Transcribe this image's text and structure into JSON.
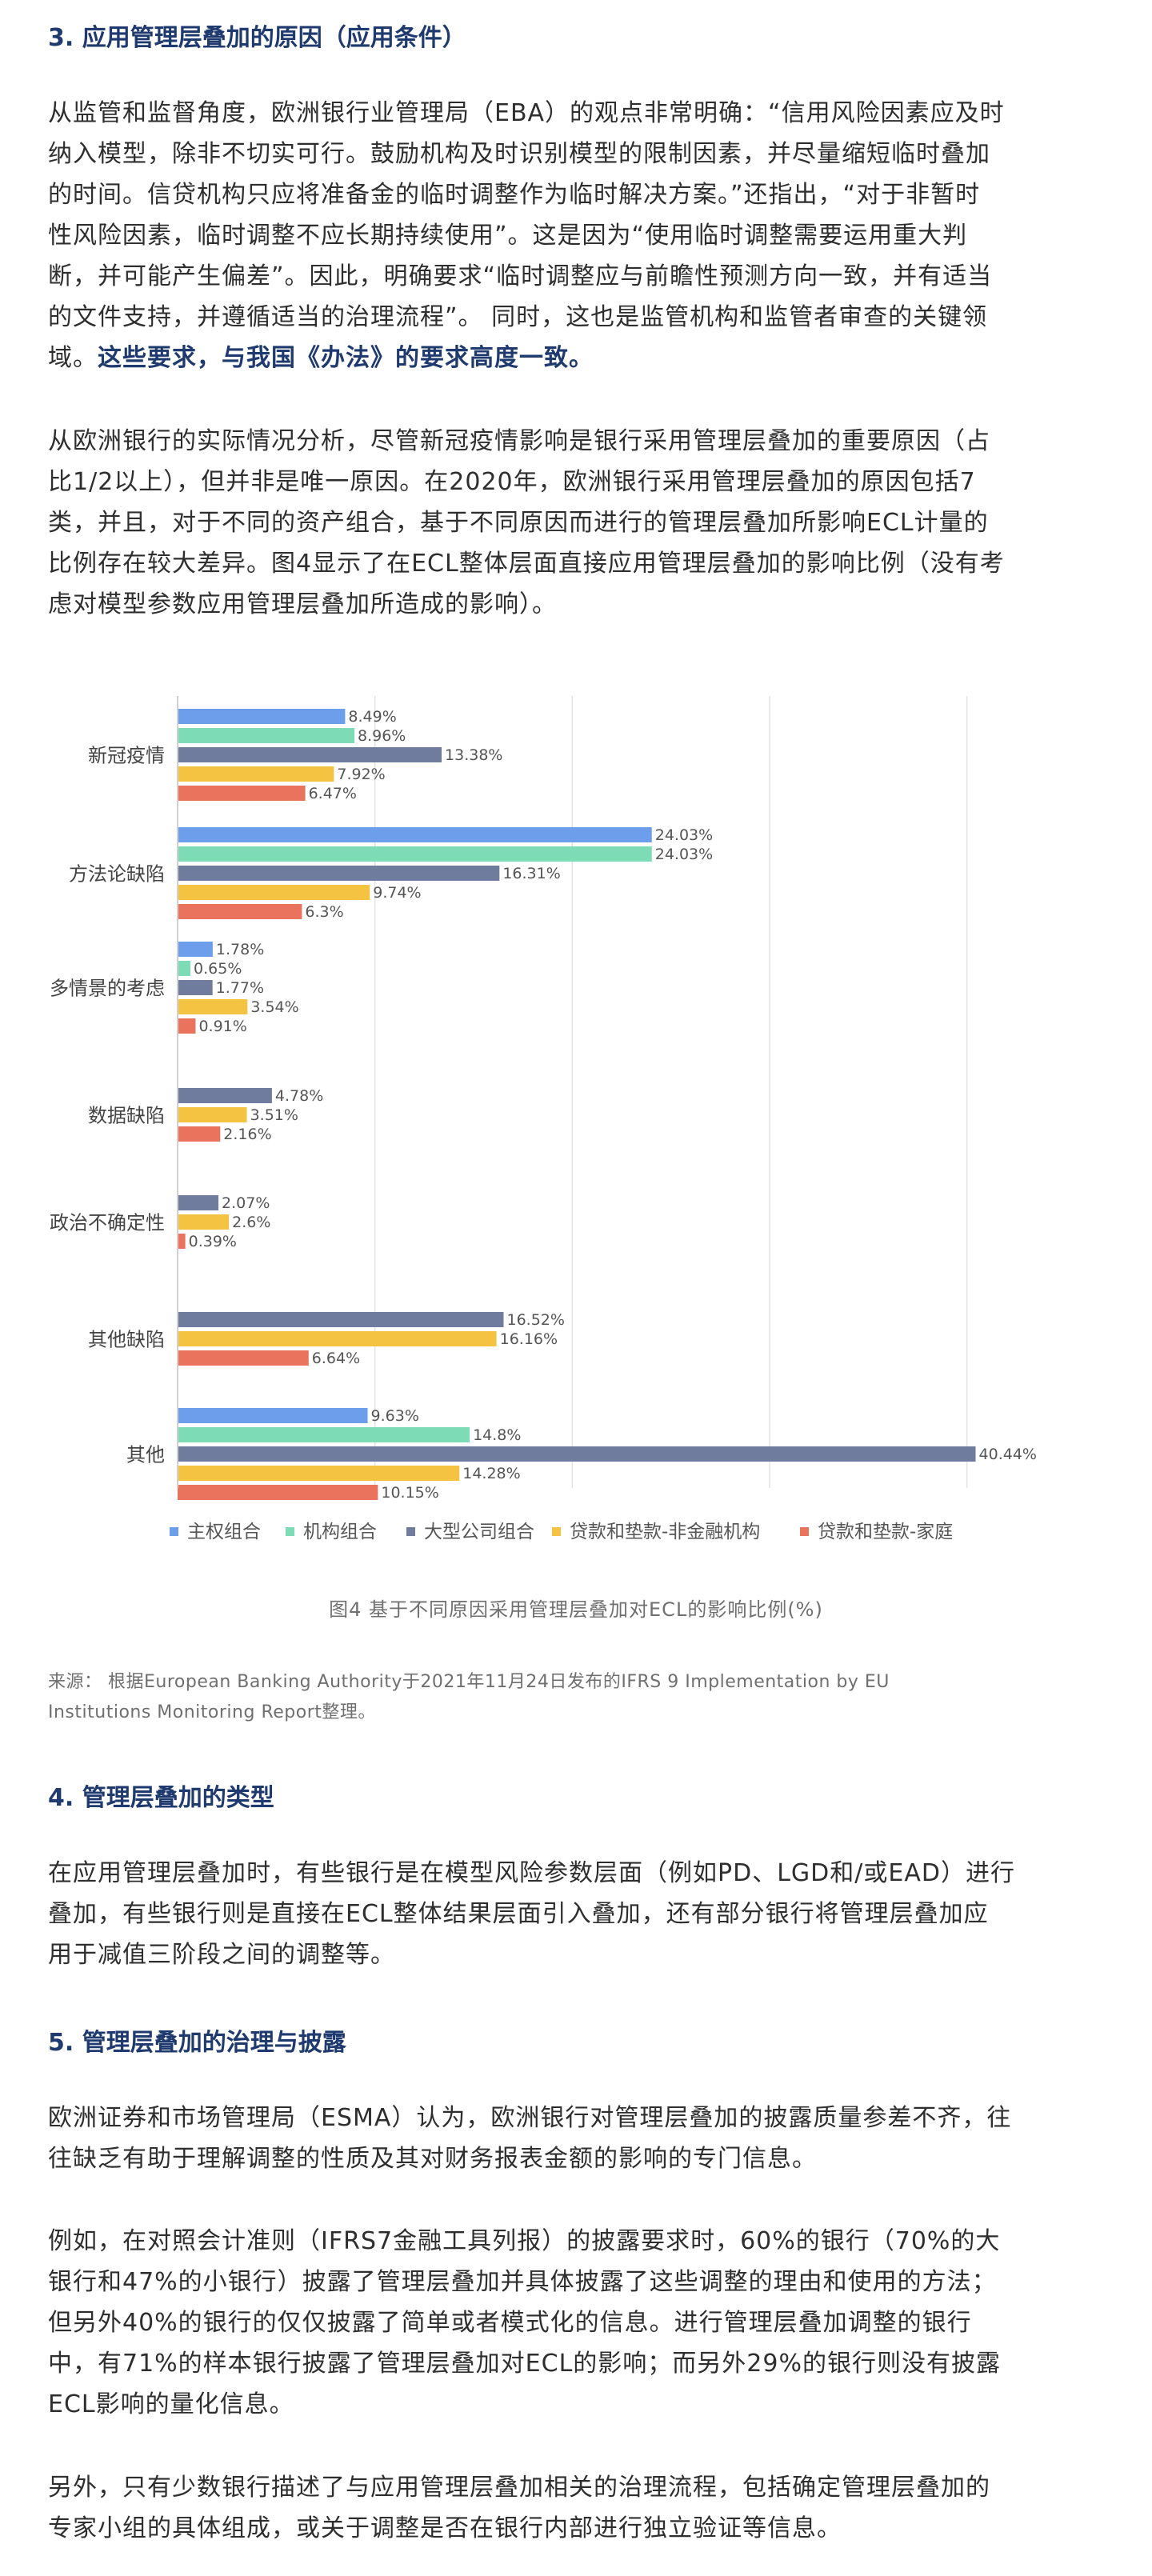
{
  "section3": {
    "heading": "3. 应用管理层叠加的原因（应用条件）",
    "p1_lines": [
      "从监管和监督角度，欧洲银行业管理局（EBA）的观点非常明确：“信用风险因素应及时",
      "纳入模型，除非不切实可行。鼓励机构及时识别模型的限制因素，并尽量缩短临时叠加",
      "的时间。信贷机构只应将准备金的临时调整作为临时解决方案。”还指出，“对于非暂时",
      "性风险因素，临时调整不应长期持续使用”。这是因为“使用临时调整需要运用重大判",
      "断，并可能产生偏差”。因此，明确要求“临时调整应与前瞻性预测方向一致，并有适当",
      "的文件支持，并遵循适当的治理流程”。 同时，这也是监管机构和监管者审查的关键领"
    ],
    "p1_last_plain": "域。",
    "p1_highlight": "这些要求，与我国《办法》的要求高度一致。",
    "p2_lines": [
      "从欧洲银行的实际情况分析，尽管新冠疫情影响是银行采用管理层叠加的重要原因（占",
      "比1/2以上），但并非是唯一原因。在2020年，欧洲银行采用管理层叠加的原因包括7",
      "类，并且，对于不同的资产组合，基于不同原因而进行的管理层叠加所影响ECL计量的",
      "比例存在较大差异。图4显示了在ECL整体层面直接应用管理层叠加的影响比例（没有考",
      "虑对模型参数应用管理层叠加所造成的影响）。"
    ]
  },
  "chart_data": {
    "type": "bar",
    "orientation": "horizontal",
    "categories": [
      "新冠疫情",
      "方法论缺陷",
      "多情景的考虑",
      "数据缺陷",
      "政治不确定性",
      "其他缺陷",
      "其他"
    ],
    "series": [
      {
        "name": "主权组合",
        "color": "#6d9eeb",
        "values": [
          8.49,
          24.03,
          1.78,
          null,
          null,
          null,
          9.63
        ],
        "labels": [
          "8.49%",
          "24.03%",
          "1.78%",
          "",
          "",
          "",
          "9.63%"
        ]
      },
      {
        "name": "机构组合",
        "color": "#7ddbb5",
        "values": [
          8.96,
          24.03,
          0.65,
          null,
          null,
          null,
          14.8
        ],
        "labels": [
          "8.96%",
          "24.03%",
          "0.65%",
          "",
          "",
          "",
          "14.8%"
        ]
      },
      {
        "name": "大型公司组合",
        "color": "#6f7c9e",
        "values": [
          13.38,
          16.31,
          1.77,
          4.78,
          2.07,
          16.52,
          40.44
        ],
        "labels": [
          "13.38%",
          "16.31%",
          "1.77%",
          "4.78%",
          "2.07%",
          "16.52%",
          "40.44%"
        ]
      },
      {
        "name": "贷款和垫款-非金融机构",
        "color": "#f5c342",
        "values": [
          7.92,
          9.74,
          3.54,
          3.51,
          2.6,
          16.16,
          14.28
        ],
        "labels": [
          "7.92%",
          "9.74%",
          "3.54%",
          "3.51%",
          "2.6%",
          "16.16%",
          "14.28%"
        ]
      },
      {
        "name": "贷款和垫款-家庭",
        "color": "#e9735c",
        "values": [
          6.47,
          6.3,
          0.91,
          2.16,
          0.39,
          6.64,
          10.15
        ],
        "labels": [
          "6.47%",
          "6.3%",
          "0.91%",
          "2.16%",
          "0.39%",
          "6.64%",
          "10.15%"
        ]
      }
    ],
    "xlim": [
      0,
      45
    ],
    "grid": true,
    "legend_position": "bottom",
    "title": "",
    "xlabel": "",
    "ylabel": ""
  },
  "figure": {
    "caption": "图4 基于不同原因采用管理层叠加对ECL的影响比例(%)",
    "source_lines": [
      "来源：  根据European Banking Authority于2021年11月24日发布的IFRS 9 Implementation by EU",
      "Institutions Monitoring Report整理。"
    ]
  },
  "section4": {
    "heading": "4. 管理层叠加的类型",
    "p_lines": [
      "在应用管理层叠加时，有些银行是在模型风险参数层面（例如PD、LGD和/或EAD）进行",
      "叠加，有些银行则是直接在ECL整体结果层面引入叠加，还有部分银行将管理层叠加应",
      "用于减值三阶段之间的调整等。"
    ]
  },
  "section5": {
    "heading": "5. 管理层叠加的治理与披露",
    "p1_lines": [
      "欧洲证券和市场管理局（ESMA）认为，欧洲银行对管理层叠加的披露质量参差不齐，往",
      "往缺乏有助于理解调整的性质及其对财务报表金额的影响的专门信息。"
    ],
    "p2_lines": [
      "例如，在对照会计准则（IFRS7金融工具列报）的披露要求时，60%的银行（70%的大",
      "银行和47%的小银行）披露了管理层叠加并具体披露了这些调整的理由和使用的方法；",
      "但另外40%的银行的仅仅披露了简单或者模式化的信息。进行管理层叠加调整的银行",
      "中，有71%的样本银行披露了管理层叠加对ECL的影响；而另外29%的银行则没有披露",
      "ECL影响的量化信息。"
    ],
    "p3_lines": [
      "另外，只有少数银行描述了与应用管理层叠加相关的治理流程，包括确定管理层叠加的",
      "专家小组的具体组成，或关于调整是否在银行内部进行独立验证等信息。"
    ]
  }
}
